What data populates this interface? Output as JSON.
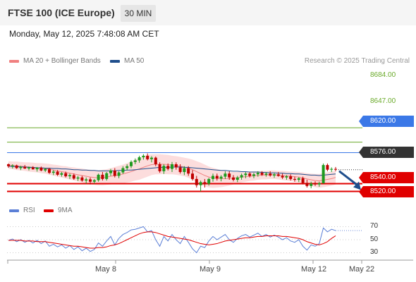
{
  "header": {
    "title": "FTSE 100 (ICE Europe)",
    "timeframe": "30 MIN",
    "datetime": "Monday, May 12, 2025 7:48:08 AM CET"
  },
  "legend": {
    "items": [
      {
        "label": "MA 20 + Bollinger Bands",
        "color": "#f08080"
      },
      {
        "label": "MA 50",
        "color": "#1f4e8c"
      }
    ],
    "copyright": "Research © 2025 Trading Central"
  },
  "rsi_legend": {
    "items": [
      {
        "label": "RSI",
        "color": "#5b7fd6"
      },
      {
        "label": "9MA",
        "color": "#e00000"
      }
    ]
  },
  "chart_data": {
    "type": "candlestick",
    "price_range": [
      8510,
      8690
    ],
    "price_levels": [
      {
        "label": "8684.00",
        "value": 8684,
        "kind": "target",
        "color": "#6aaa2a"
      },
      {
        "label": "8647.00",
        "value": 8647,
        "kind": "target",
        "color": "#6aaa2a"
      },
      {
        "label": "8620.00",
        "value": 8620,
        "kind": "resistance",
        "color": "#3b78e7"
      },
      {
        "label": "8576.00",
        "value": 8576,
        "kind": "last",
        "color": "#333333"
      },
      {
        "label": "8540.00",
        "value": 8540,
        "kind": "support",
        "color": "#e00000"
      },
      {
        "label": "8520.00",
        "value": 8520,
        "kind": "support",
        "color": "#e00000"
      }
    ],
    "candles": [
      [
        8590,
        8592,
        8581,
        8585
      ],
      [
        8585,
        8590,
        8579,
        8587
      ],
      [
        8587,
        8589,
        8578,
        8580
      ],
      [
        8580,
        8586,
        8575,
        8583
      ],
      [
        8583,
        8588,
        8578,
        8579
      ],
      [
        8579,
        8584,
        8574,
        8582
      ],
      [
        8582,
        8585,
        8576,
        8577
      ],
      [
        8577,
        8583,
        8571,
        8581
      ],
      [
        8581,
        8584,
        8572,
        8574
      ],
      [
        8574,
        8580,
        8570,
        8578
      ],
      [
        8578,
        8581,
        8565,
        8568
      ],
      [
        8568,
        8575,
        8562,
        8571
      ],
      [
        8571,
        8575,
        8560,
        8563
      ],
      [
        8563,
        8570,
        8558,
        8567
      ],
      [
        8567,
        8571,
        8556,
        8559
      ],
      [
        8559,
        8566,
        8552,
        8562
      ],
      [
        8562,
        8566,
        8550,
        8553
      ],
      [
        8553,
        8560,
        8547,
        8556
      ],
      [
        8556,
        8560,
        8545,
        8548
      ],
      [
        8548,
        8556,
        8540,
        8551
      ],
      [
        8551,
        8556,
        8538,
        8545
      ],
      [
        8545,
        8552,
        8540,
        8549
      ],
      [
        8549,
        8566,
        8545,
        8563
      ],
      [
        8563,
        8570,
        8548,
        8552
      ],
      [
        8552,
        8570,
        8548,
        8567
      ],
      [
        8567,
        8578,
        8560,
        8574
      ],
      [
        8574,
        8580,
        8556,
        8560
      ],
      [
        8560,
        8572,
        8554,
        8569
      ],
      [
        8569,
        8585,
        8565,
        8580
      ],
      [
        8580,
        8590,
        8574,
        8585
      ],
      [
        8585,
        8600,
        8580,
        8596
      ],
      [
        8596,
        8605,
        8590,
        8600
      ],
      [
        8600,
        8612,
        8594,
        8608
      ],
      [
        8608,
        8616,
        8602,
        8612
      ],
      [
        8612,
        8618,
        8600,
        8603
      ],
      [
        8603,
        8611,
        8595,
        8607
      ],
      [
        8607,
        8610,
        8585,
        8590
      ],
      [
        8590,
        8595,
        8568,
        8572
      ],
      [
        8572,
        8590,
        8565,
        8586
      ],
      [
        8586,
        8592,
        8574,
        8578
      ],
      [
        8578,
        8596,
        8570,
        8590
      ],
      [
        8590,
        8595,
        8576,
        8582
      ],
      [
        8582,
        8590,
        8566,
        8570
      ],
      [
        8570,
        8585,
        8562,
        8580
      ],
      [
        8580,
        8585,
        8560,
        8566
      ],
      [
        8566,
        8575,
        8548,
        8552
      ],
      [
        8552,
        8560,
        8530,
        8536
      ],
      [
        8536,
        8548,
        8520,
        8544
      ],
      [
        8544,
        8552,
        8530,
        8540
      ],
      [
        8540,
        8555,
        8535,
        8552
      ],
      [
        8552,
        8566,
        8545,
        8560
      ],
      [
        8560,
        8566,
        8548,
        8553
      ],
      [
        8553,
        8562,
        8546,
        8558
      ],
      [
        8558,
        8572,
        8552,
        8566
      ],
      [
        8566,
        8572,
        8550,
        8556
      ],
      [
        8556,
        8562,
        8546,
        8550
      ],
      [
        8550,
        8560,
        8544,
        8556
      ],
      [
        8556,
        8566,
        8550,
        8562
      ],
      [
        8562,
        8570,
        8554,
        8566
      ],
      [
        8566,
        8570,
        8556,
        8560
      ],
      [
        8560,
        8568,
        8554,
        8564
      ],
      [
        8564,
        8572,
        8558,
        8568
      ],
      [
        8568,
        8572,
        8560,
        8563
      ],
      [
        8563,
        8570,
        8558,
        8566
      ],
      [
        8566,
        8572,
        8558,
        8561
      ],
      [
        8561,
        8568,
        8555,
        8564
      ],
      [
        8564,
        8570,
        8558,
        8560
      ],
      [
        8560,
        8566,
        8552,
        8556
      ],
      [
        8556,
        8562,
        8550,
        8559
      ],
      [
        8559,
        8564,
        8548,
        8552
      ],
      [
        8552,
        8558,
        8545,
        8550
      ],
      [
        8550,
        8557,
        8544,
        8554
      ],
      [
        8554,
        8558,
        8538,
        8542
      ],
      [
        8542,
        8550,
        8530,
        8534
      ],
      [
        8534,
        8545,
        8528,
        8540
      ],
      [
        8540,
        8546,
        8534,
        8538
      ],
      [
        8538,
        8545,
        8532,
        8541
      ],
      [
        8541,
        8592,
        8540,
        8588
      ],
      [
        8588,
        8592,
        8572,
        8576
      ],
      [
        8576,
        8582,
        8570,
        8578
      ],
      [
        8578,
        8583,
        8572,
        8576
      ]
    ],
    "ma20": [
      8588,
      8587,
      8586,
      8585,
      8584,
      8583,
      8582,
      8581,
      8580,
      8579,
      8577,
      8575,
      8573,
      8571,
      8569,
      8567,
      8565,
      8563,
      8561,
      8559,
      8557,
      8556,
      8555,
      8556,
      8557,
      8559,
      8561,
      8563,
      8565,
      8568,
      8571,
      8575,
      8578,
      8582,
      8586,
      8589,
      8590,
      8590,
      8590,
      8589,
      8588,
      8587,
      8585,
      8583,
      8580,
      8576,
      8571,
      8566,
      8561,
      8557,
      8555,
      8554,
      8553,
      8553,
      8553,
      8554,
      8555,
      8557,
      8558,
      8559,
      8560,
      8561,
      8562,
      8562,
      8563,
      8563,
      8562,
      8561,
      8560,
      8559,
      8558,
      8557,
      8555,
      8552,
      8550,
      8548,
      8547,
      8549,
      8551,
      8553,
      8556
    ],
    "ma50": [
      8585,
      8584,
      8584,
      8583,
      8583,
      8582,
      8582,
      8581,
      8581,
      8580,
      8580,
      8579,
      8579,
      8578,
      8578,
      8577,
      8576,
      8576,
      8575,
      8575,
      8574,
      8574,
      8573,
      8573,
      8573,
      8573,
      8573,
      8574,
      8574,
      8575,
      8575,
      8576,
      8577,
      8578,
      8579,
      8580,
      8581,
      8582,
      8582,
      8582,
      8583,
      8583,
      8583,
      8582,
      8582,
      8581,
      8580,
      8579,
      8578,
      8577,
      8576,
      8575,
      8574,
      8574,
      8573,
      8572,
      8572,
      8571,
      8571,
      8570,
      8570,
      8570,
      8569,
      8569,
      8568,
      8568,
      8567,
      8567,
      8566,
      8566,
      8565,
      8565,
      8564,
      8563,
      8562,
      8562,
      8561,
      8562,
      8563,
      8564,
      8565
    ],
    "bollinger_width": [
      10,
      10,
      11,
      11,
      11,
      12,
      12,
      12,
      13,
      13,
      14,
      14,
      15,
      15,
      16,
      16,
      17,
      17,
      18,
      18,
      19,
      19,
      19,
      20,
      20,
      21,
      22,
      23,
      24,
      25,
      26,
      27,
      28,
      28,
      28,
      27,
      26,
      26,
      25,
      25,
      24,
      24,
      24,
      24,
      25,
      26,
      27,
      28,
      28,
      27,
      26,
      24,
      22,
      20,
      18,
      16,
      15,
      14,
      13,
      12,
      12,
      11,
      11,
      11,
      11,
      11,
      11,
      12,
      12,
      12,
      13,
      13,
      14,
      15,
      16,
      17,
      18,
      18,
      18,
      18,
      18
    ],
    "forecast": {
      "from": 8576,
      "to": 8520
    },
    "rsi_axis": {
      "ticks": [
        "70",
        "50",
        "30"
      ],
      "range": [
        20,
        80
      ]
    },
    "rsi": [
      49,
      51,
      47,
      50,
      46,
      49,
      45,
      49,
      44,
      48,
      40,
      43,
      39,
      42,
      37,
      41,
      35,
      39,
      33,
      37,
      32,
      35,
      45,
      40,
      48,
      55,
      42,
      52,
      58,
      61,
      65,
      66,
      68,
      70,
      62,
      64,
      50,
      40,
      55,
      48,
      58,
      50,
      44,
      55,
      46,
      36,
      30,
      40,
      38,
      48,
      55,
      50,
      54,
      58,
      50,
      46,
      52,
      56,
      58,
      54,
      57,
      60,
      55,
      58,
      54,
      57,
      54,
      50,
      53,
      48,
      46,
      50,
      40,
      34,
      42,
      40,
      44,
      68,
      62,
      66,
      64
    ],
    "rsi_ma": [
      49,
      49,
      49,
      49,
      48,
      48,
      48,
      47,
      47,
      47,
      46,
      45,
      44,
      43,
      42,
      41,
      40,
      40,
      39,
      38,
      37,
      37,
      38,
      38,
      39,
      41,
      42,
      44,
      47,
      50,
      53,
      56,
      59,
      61,
      62,
      62,
      61,
      59,
      57,
      55,
      54,
      53,
      52,
      51,
      50,
      48,
      46,
      44,
      43,
      42,
      43,
      44,
      46,
      48,
      49,
      50,
      51,
      52,
      53,
      53,
      54,
      55,
      55,
      56,
      56,
      56,
      56,
      55,
      55,
      54,
      53,
      52,
      50,
      47,
      45,
      43,
      42,
      44,
      47,
      52,
      56
    ],
    "x_ticks": [
      "May 8",
      "May 9",
      "May 12",
      "May 22"
    ]
  }
}
